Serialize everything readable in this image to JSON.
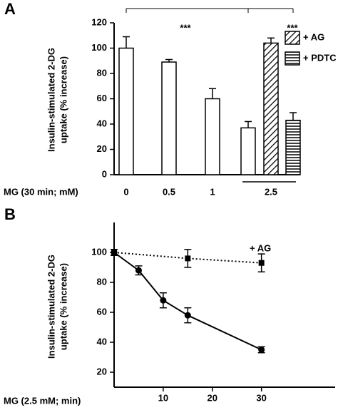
{
  "chart_data": [
    {
      "type": "bar",
      "panel": "A",
      "ylabel": [
        "Insulin-stimulated 2-DG",
        "uptake (% increase)"
      ],
      "xlabel": "MG (30 min; mM)",
      "categories": [
        "0",
        "0.5",
        "1",
        null,
        "2.5",
        null
      ],
      "series": [
        {
          "values": [
            100,
            89,
            60,
            37,
            null,
            null
          ],
          "errors": [
            9,
            2,
            8,
            5,
            null,
            null
          ],
          "fill": "none",
          "color": "#000000"
        },
        {
          "name": "+ AG",
          "values": [
            null,
            null,
            null,
            null,
            104,
            null
          ],
          "errors": [
            null,
            null,
            null,
            null,
            4,
            null
          ],
          "fill": "diagonal",
          "color": "#000000"
        },
        {
          "name": "+ PDTC",
          "values": [
            null,
            null,
            null,
            null,
            null,
            43
          ],
          "errors": [
            null,
            null,
            null,
            null,
            null,
            6
          ],
          "fill": "horizontal",
          "color": "#000000"
        }
      ],
      "ylim": [
        0,
        120
      ],
      "yticks": [
        0,
        20,
        40,
        60,
        80,
        100,
        120
      ],
      "annotations": [
        "***",
        "***"
      ]
    },
    {
      "type": "line",
      "panel": "B",
      "ylabel": [
        "Insulin-stimulated 2-DG",
        "uptake (% increase)"
      ],
      "xlabel": "MG (2.5 mM; min)",
      "series": [
        {
          "x": [
            0,
            5,
            10,
            15,
            30
          ],
          "values": [
            100,
            88,
            68,
            58,
            35
          ],
          "errors": [
            2,
            3,
            5,
            5,
            2
          ],
          "marker": "circle",
          "linestyle": "solid",
          "color": "#000000"
        },
        {
          "name": "+ AG",
          "x": [
            0,
            15,
            30
          ],
          "values": [
            100,
            96,
            93
          ],
          "errors": [
            2,
            6,
            6
          ],
          "marker": "square",
          "linestyle": "dotted",
          "color": "#000000"
        }
      ],
      "xlim": [
        0,
        45
      ],
      "xticks": [
        10,
        20,
        30
      ],
      "ylim": [
        10,
        120
      ],
      "yticks": [
        20,
        40,
        60,
        80,
        100
      ]
    }
  ]
}
